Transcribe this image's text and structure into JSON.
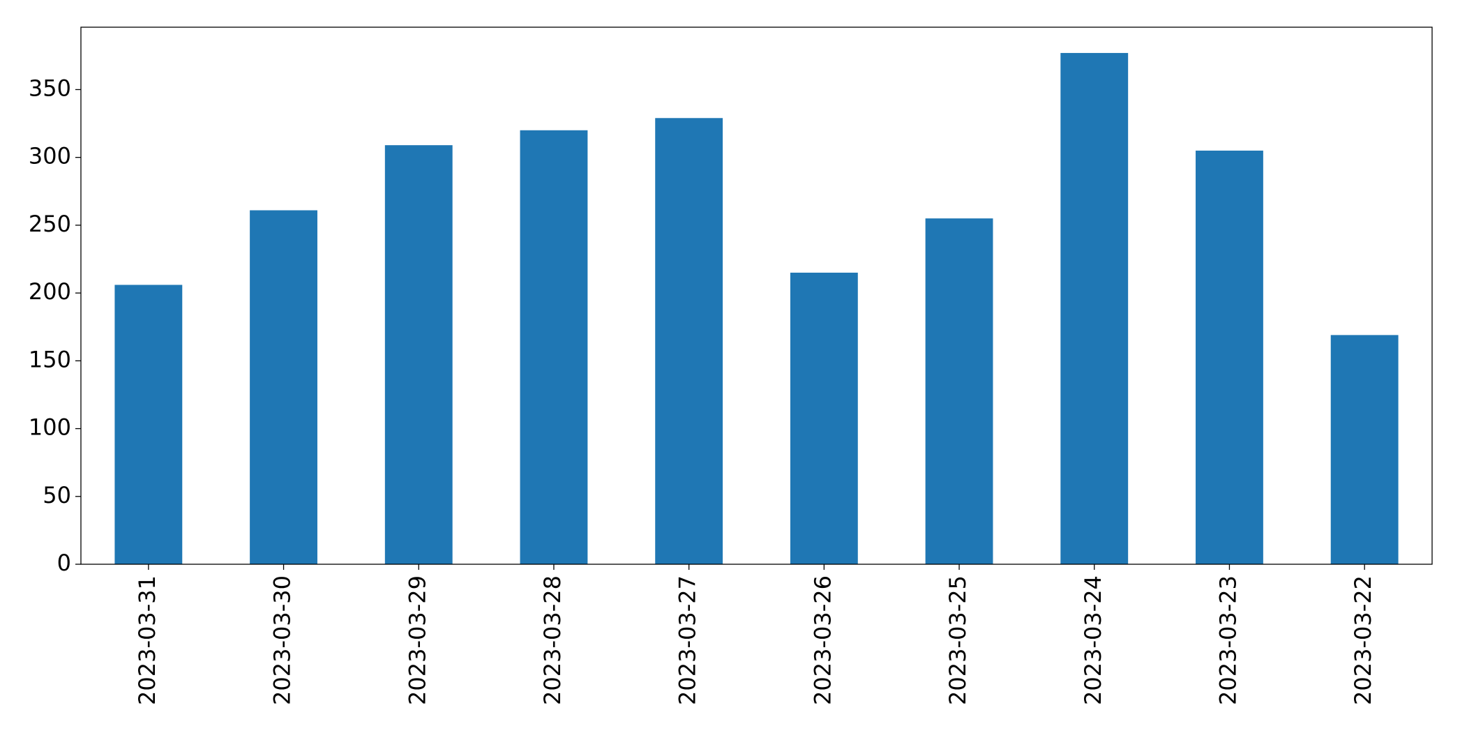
{
  "chart_data": {
    "type": "bar",
    "categories": [
      "2023-03-31",
      "2023-03-30",
      "2023-03-29",
      "2023-03-28",
      "2023-03-27",
      "2023-03-26",
      "2023-03-25",
      "2023-03-24",
      "2023-03-23",
      "2023-03-22"
    ],
    "values": [
      206,
      261,
      309,
      320,
      329,
      215,
      255,
      377,
      305,
      169
    ],
    "color": "#1f77b4",
    "ylim": [
      0,
      396
    ],
    "yticks": [
      0,
      50,
      100,
      150,
      200,
      250,
      300,
      350
    ],
    "grid": false
  }
}
